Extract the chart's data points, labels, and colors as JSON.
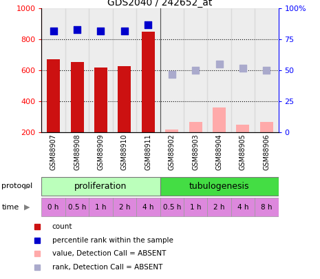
{
  "title": "GDS2040 / 242652_at",
  "samples": [
    "GSM88907",
    "GSM88908",
    "GSM88909",
    "GSM88910",
    "GSM88911",
    "GSM88902",
    "GSM88903",
    "GSM88904",
    "GSM88905",
    "GSM88906"
  ],
  "bar_values": [
    670,
    655,
    620,
    630,
    850,
    null,
    null,
    null,
    null,
    null
  ],
  "bar_values_absent": [
    null,
    null,
    null,
    null,
    null,
    220,
    270,
    360,
    250,
    270
  ],
  "rank_present": [
    82,
    83,
    82,
    82,
    87,
    null,
    null,
    null,
    null,
    null
  ],
  "rank_absent": [
    null,
    null,
    null,
    null,
    null,
    47,
    50,
    55,
    52,
    50
  ],
  "bar_color_present": "#cc1111",
  "bar_color_absent": "#ffaaaa",
  "rank_color_present": "#0000cc",
  "rank_color_absent": "#aaaacc",
  "ylim_left": [
    200,
    1000
  ],
  "ylim_right": [
    0,
    100
  ],
  "yticks_left": [
    200,
    400,
    600,
    800,
    1000
  ],
  "yticks_right": [
    0,
    25,
    50,
    75,
    100
  ],
  "yticklabels_right": [
    "0",
    "25",
    "50",
    "75",
    "100%"
  ],
  "grid_dotted_at": [
    400,
    600,
    800
  ],
  "protocol_labels": [
    "proliferation",
    "tubulogenesis"
  ],
  "time_labels": [
    "0 h",
    "0.5 h",
    "1 h",
    "2 h",
    "4 h",
    "0.5 h",
    "1 h",
    "2 h",
    "4 h",
    "8 h"
  ],
  "proto_color_light": "#bbffbb",
  "proto_color_dark": "#44dd44",
  "time_color": "#dd88dd",
  "sample_bg_color": "#cccccc",
  "legend_items": [
    {
      "color": "#cc1111",
      "label": "count"
    },
    {
      "color": "#0000cc",
      "label": "percentile rank within the sample"
    },
    {
      "color": "#ffaaaa",
      "label": "value, Detection Call = ABSENT"
    },
    {
      "color": "#aaaacc",
      "label": "rank, Detection Call = ABSENT"
    }
  ],
  "dot_size": 55
}
